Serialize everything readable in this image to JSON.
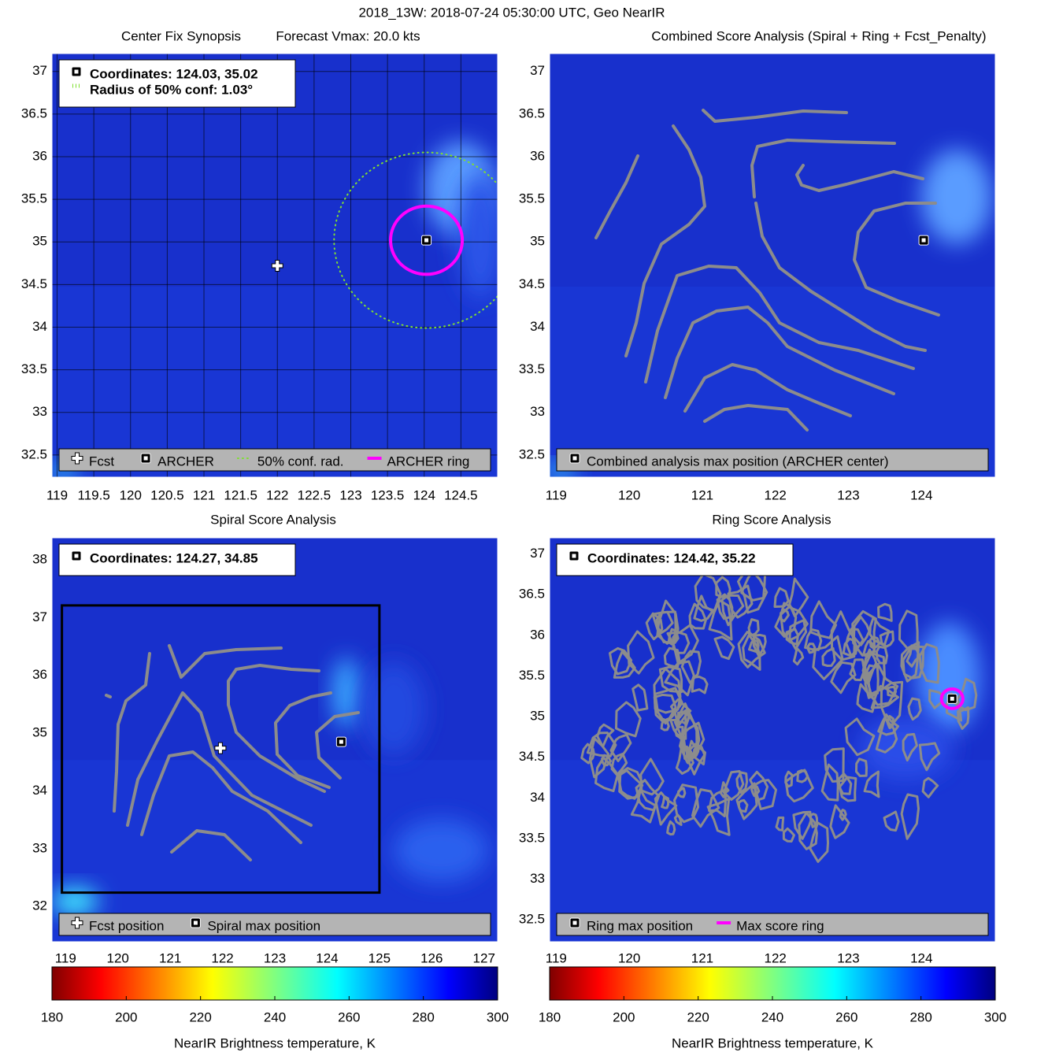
{
  "figure_title": "2018_13W: 2018-07-24 05:30:00 UTC, Geo NearIR",
  "chart_data": [
    {
      "type": "map",
      "title": "Center Fix Synopsis",
      "subtitle": "Forecast Vmax: 20.0 kts",
      "xlim": [
        118.93,
        125.0
      ],
      "ylim": [
        32.24,
        37.21
      ],
      "xticks": [
        119,
        119.5,
        120,
        120.5,
        121,
        121.5,
        122,
        122.5,
        123,
        123.5,
        124,
        124.5
      ],
      "yticks": [
        32.5,
        33,
        33.5,
        34,
        34.5,
        35,
        35.5,
        36,
        36.5,
        37
      ],
      "grid": true,
      "annotations": [
        "Coordinates: 124.03, 35.02",
        "Radius of 50% conf: 1.03°"
      ],
      "series": [
        {
          "name": "Fcst",
          "marker": "cross",
          "color": "#ffffff",
          "x": [
            122.0
          ],
          "values": [
            34.72
          ]
        },
        {
          "name": "ARCHER",
          "marker": "square",
          "color": "#000000",
          "x": [
            124.03
          ],
          "values": [
            35.02
          ]
        },
        {
          "name": "50% conf. rad.",
          "marker": "dotted-circle",
          "color": "#7fe030",
          "x": [
            124.03
          ],
          "values": [
            35.02
          ],
          "radius": 1.03
        },
        {
          "name": "ARCHER ring",
          "marker": "ring",
          "color": "#ff00ff",
          "x": [
            124.03
          ],
          "values": [
            35.02
          ],
          "radius": 0.4
        }
      ]
    },
    {
      "type": "map",
      "title": "Combined Score Analysis (Spiral + Ring + Fcst_Penalty)",
      "xlim": [
        118.91,
        125.01
      ],
      "ylim": [
        32.24,
        37.21
      ],
      "xticks": [
        119,
        120,
        121,
        122,
        123,
        124
      ],
      "yticks": [
        32.5,
        33,
        33.5,
        34,
        34.5,
        35,
        35.5,
        36,
        36.5,
        37
      ],
      "grid": false,
      "series": [
        {
          "name": "Combined analysis max position (ARCHER center)",
          "marker": "square",
          "color": "#000000",
          "x": [
            124.03
          ],
          "values": [
            35.02
          ]
        }
      ]
    },
    {
      "type": "map",
      "title": "Spiral Score Analysis",
      "xlim": [
        118.74,
        127.26
      ],
      "ylim": [
        31.39,
        38.38
      ],
      "xticks": [
        119,
        120,
        121,
        122,
        123,
        124,
        125,
        126,
        127
      ],
      "yticks": [
        32,
        33,
        34,
        35,
        36,
        37,
        38
      ],
      "grid": false,
      "annotations": [
        "Coordinates: 124.27, 34.85"
      ],
      "box": {
        "xlim": [
          118.93,
          125.0
        ],
        "ylim": [
          32.24,
          37.21
        ]
      },
      "series": [
        {
          "name": "Fcst position",
          "marker": "cross",
          "color": "#ffffff",
          "x": [
            121.96
          ],
          "values": [
            34.74
          ]
        },
        {
          "name": "Spiral max position",
          "marker": "square",
          "color": "#000000",
          "x": [
            124.27
          ],
          "values": [
            34.85
          ]
        }
      ],
      "colorbar": {
        "clim": [
          180,
          300
        ],
        "ticks": [
          180,
          200,
          220,
          240,
          260,
          280,
          300
        ],
        "label": "NearIR Brightness temperature, K",
        "colormap": "jet"
      }
    },
    {
      "type": "map",
      "title": "Ring Score Analysis",
      "xlim": [
        118.91,
        125.01
      ],
      "ylim": [
        32.23,
        37.2
      ],
      "xticks": [
        119,
        120,
        121,
        122,
        123,
        124
      ],
      "yticks": [
        32.5,
        33,
        33.5,
        34,
        34.5,
        35,
        35.5,
        36,
        36.5,
        37
      ],
      "grid": false,
      "annotations": [
        "Coordinates: 124.42, 35.22"
      ],
      "series": [
        {
          "name": "Ring max position",
          "marker": "square",
          "color": "#000000",
          "x": [
            124.42
          ],
          "values": [
            35.22
          ]
        },
        {
          "name": "Max score ring",
          "marker": "ring",
          "color": "#ff00ff",
          "x": [
            124.42
          ],
          "values": [
            35.22
          ],
          "radius": 0.12
        }
      ],
      "colorbar": {
        "clim": [
          180,
          300
        ],
        "ticks": [
          180,
          200,
          220,
          240,
          260,
          280,
          300
        ],
        "label": "NearIR Brightness temperature, K",
        "colormap": "jet"
      }
    }
  ]
}
